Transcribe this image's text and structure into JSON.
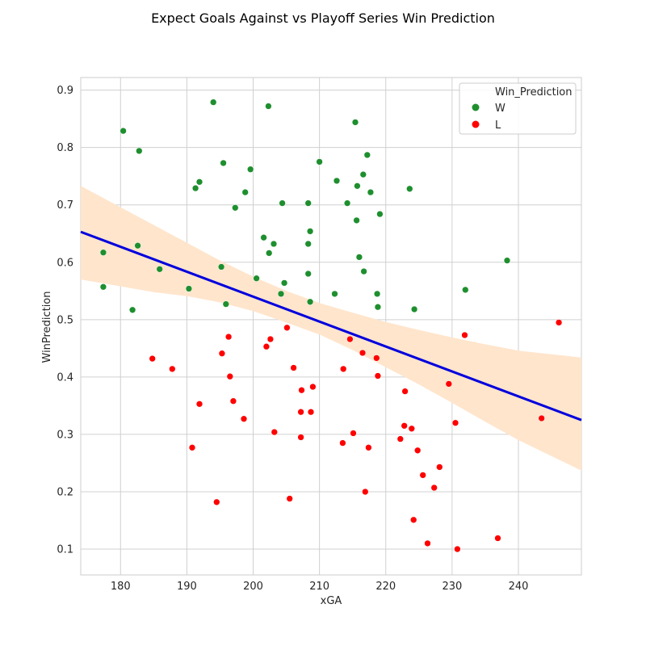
{
  "chart_data": {
    "type": "scatter",
    "title": "Expect Goals Against vs Playoff Series Win Prediction",
    "xlabel": "xGA",
    "ylabel": "WinPrediction",
    "xlim": [
      174,
      249.5
    ],
    "ylim": [
      0.055,
      0.922
    ],
    "xticks": [
      180,
      190,
      200,
      210,
      220,
      230,
      240
    ],
    "yticks": [
      0.1,
      0.2,
      0.3,
      0.4,
      0.5,
      0.6,
      0.7,
      0.8,
      0.9
    ],
    "grid": true,
    "legend": {
      "title": "Win_Prediction",
      "placement": "top-right",
      "entries": [
        "W",
        "L"
      ]
    },
    "colors": {
      "W": "#1e8f2e",
      "L": "#ff0000",
      "regression": "#0000dd",
      "ci_band": "#ffe5cc",
      "grid": "#d0d0d0",
      "frame": "#cccccc"
    },
    "regression": {
      "line": [
        [
          174,
          0.653
        ],
        [
          249.5,
          0.325
        ]
      ],
      "ci_upper": [
        [
          174,
          0.733
        ],
        [
          185,
          0.665
        ],
        [
          195,
          0.603
        ],
        [
          200,
          0.575
        ],
        [
          205,
          0.55
        ],
        [
          210,
          0.529
        ],
        [
          215,
          0.512
        ],
        [
          220,
          0.496
        ],
        [
          225,
          0.482
        ],
        [
          230,
          0.469
        ],
        [
          235,
          0.457
        ],
        [
          240,
          0.446
        ],
        [
          249.5,
          0.434
        ]
      ],
      "ci_lower": [
        [
          174,
          0.57
        ],
        [
          185,
          0.548
        ],
        [
          190,
          0.541
        ],
        [
          195,
          0.53
        ],
        [
          200,
          0.515
        ],
        [
          205,
          0.495
        ],
        [
          210,
          0.474
        ],
        [
          215,
          0.447
        ],
        [
          220,
          0.417
        ],
        [
          225,
          0.387
        ],
        [
          230,
          0.355
        ],
        [
          235,
          0.322
        ],
        [
          240,
          0.29
        ],
        [
          249.5,
          0.237
        ]
      ]
    },
    "series": [
      {
        "name": "W",
        "points": [
          [
            194,
            0.879
          ],
          [
            202.3,
            0.872
          ],
          [
            215.4,
            0.844
          ],
          [
            180.4,
            0.829
          ],
          [
            182.8,
            0.794
          ],
          [
            217.2,
            0.787
          ],
          [
            210,
            0.775
          ],
          [
            195.5,
            0.773
          ],
          [
            199.6,
            0.762
          ],
          [
            216.6,
            0.753
          ],
          [
            212.6,
            0.742
          ],
          [
            191.9,
            0.74
          ],
          [
            191.3,
            0.729
          ],
          [
            223.6,
            0.728
          ],
          [
            215.7,
            0.733
          ],
          [
            217.7,
            0.722
          ],
          [
            198.8,
            0.722
          ],
          [
            214.2,
            0.703
          ],
          [
            208.3,
            0.703
          ],
          [
            204.4,
            0.703
          ],
          [
            197.3,
            0.695
          ],
          [
            219.1,
            0.684
          ],
          [
            215.6,
            0.673
          ],
          [
            208.6,
            0.654
          ],
          [
            201.6,
            0.643
          ],
          [
            203.1,
            0.632
          ],
          [
            208.3,
            0.632
          ],
          [
            182.6,
            0.629
          ],
          [
            202.4,
            0.616
          ],
          [
            177.4,
            0.617
          ],
          [
            216,
            0.609
          ],
          [
            238.3,
            0.603
          ],
          [
            195.2,
            0.592
          ],
          [
            185.9,
            0.588
          ],
          [
            216.7,
            0.584
          ],
          [
            208.3,
            0.58
          ],
          [
            200.5,
            0.572
          ],
          [
            204.7,
            0.564
          ],
          [
            190.3,
            0.554
          ],
          [
            232,
            0.552
          ],
          [
            177.4,
            0.557
          ],
          [
            212.3,
            0.545
          ],
          [
            218.7,
            0.545
          ],
          [
            204.2,
            0.545
          ],
          [
            208.6,
            0.531
          ],
          [
            195.9,
            0.527
          ],
          [
            218.8,
            0.522
          ],
          [
            224.3,
            0.518
          ],
          [
            181.8,
            0.517
          ]
        ]
      },
      {
        "name": "L",
        "points": [
          [
            246.1,
            0.495
          ],
          [
            205.1,
            0.486
          ],
          [
            231.9,
            0.473
          ],
          [
            196.3,
            0.47
          ],
          [
            214.6,
            0.466
          ],
          [
            202.6,
            0.466
          ],
          [
            202,
            0.453
          ],
          [
            216.5,
            0.442
          ],
          [
            195.3,
            0.441
          ],
          [
            184.8,
            0.432
          ],
          [
            218.6,
            0.433
          ],
          [
            206.1,
            0.416
          ],
          [
            187.8,
            0.414
          ],
          [
            213.6,
            0.414
          ],
          [
            218.8,
            0.402
          ],
          [
            196.5,
            0.401
          ],
          [
            229.5,
            0.388
          ],
          [
            209,
            0.383
          ],
          [
            207.3,
            0.377
          ],
          [
            222.9,
            0.375
          ],
          [
            197,
            0.358
          ],
          [
            191.9,
            0.353
          ],
          [
            207.2,
            0.339
          ],
          [
            208.7,
            0.339
          ],
          [
            243.5,
            0.328
          ],
          [
            198.6,
            0.327
          ],
          [
            230.5,
            0.32
          ],
          [
            222.8,
            0.315
          ],
          [
            223.9,
            0.31
          ],
          [
            203.2,
            0.304
          ],
          [
            215.1,
            0.302
          ],
          [
            207.2,
            0.295
          ],
          [
            222.2,
            0.292
          ],
          [
            213.5,
            0.285
          ],
          [
            190.8,
            0.277
          ],
          [
            217.4,
            0.277
          ],
          [
            224.8,
            0.272
          ],
          [
            228.1,
            0.243
          ],
          [
            225.6,
            0.229
          ],
          [
            227.3,
            0.207
          ],
          [
            216.9,
            0.2
          ],
          [
            205.5,
            0.188
          ],
          [
            194.5,
            0.182
          ],
          [
            224.2,
            0.151
          ],
          [
            236.9,
            0.119
          ],
          [
            226.3,
            0.11
          ],
          [
            230.8,
            0.1
          ]
        ]
      }
    ]
  }
}
